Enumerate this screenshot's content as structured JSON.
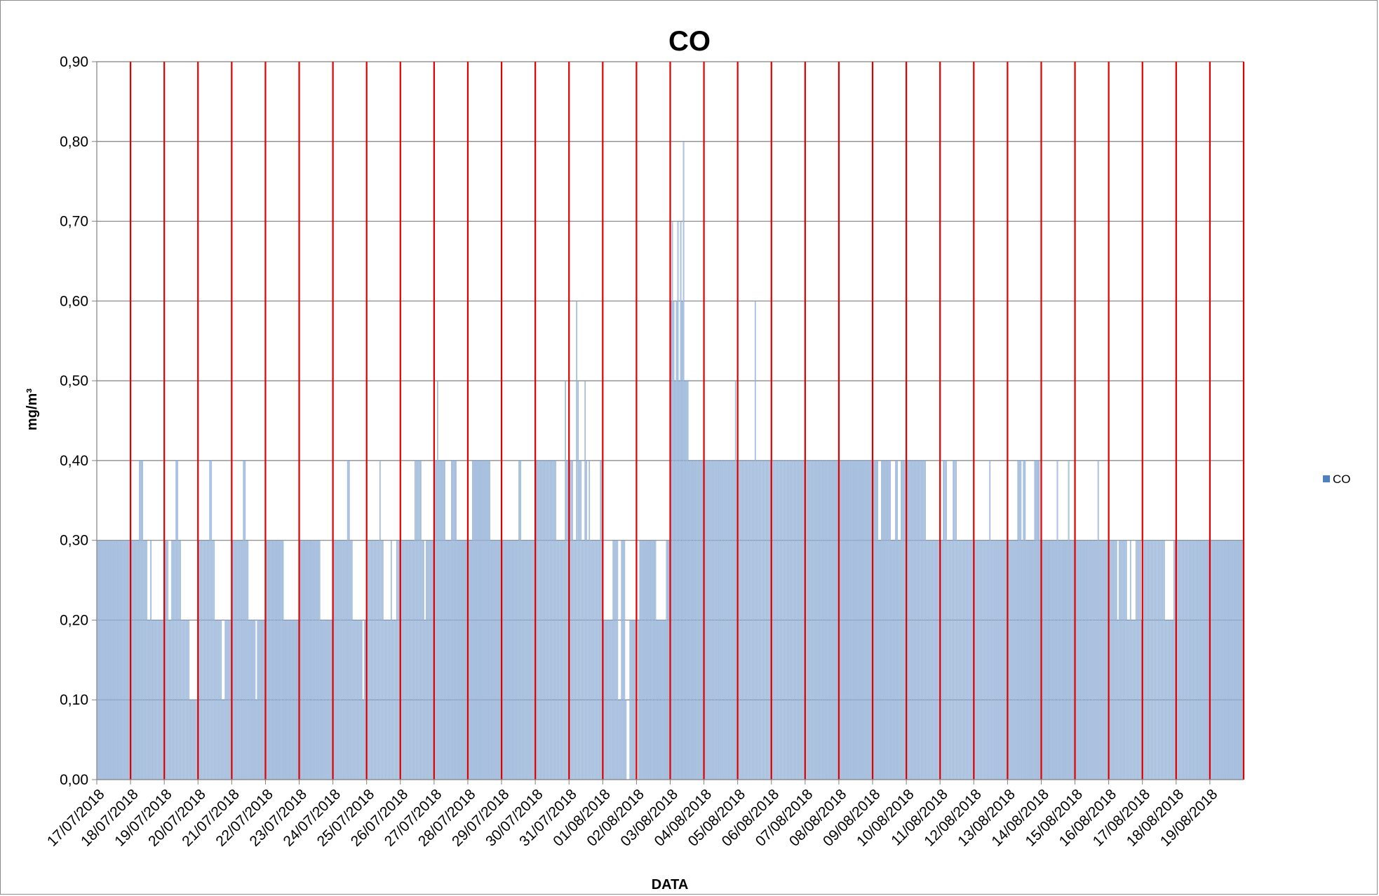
{
  "chart_data": {
    "type": "bar",
    "title": "CO",
    "xlabel": "DATA",
    "ylabel": "mg/m³",
    "ylim": [
      0,
      0.9
    ],
    "y_ticks": [
      "0,00",
      "0,10",
      "0,20",
      "0,30",
      "0,40",
      "0,50",
      "0,60",
      "0,70",
      "0,80",
      "0,90"
    ],
    "grid": true,
    "legend": {
      "position": "right",
      "entries": [
        "CO"
      ]
    },
    "colors": {
      "bar": "#4f81bd",
      "bar_fill": "#bccde6",
      "day_separator": "#e00000",
      "grid": "#808080"
    },
    "samples_per_day": 24,
    "categories": [
      "17/07/2018",
      "18/07/2018",
      "19/07/2018",
      "20/07/2018",
      "21/07/2018",
      "22/07/2018",
      "23/07/2018",
      "24/07/2018",
      "25/07/2018",
      "26/07/2018",
      "27/07/2018",
      "28/07/2018",
      "29/07/2018",
      "30/07/2018",
      "31/07/2018",
      "01/08/2018",
      "02/08/2018",
      "03/08/2018",
      "04/08/2018",
      "05/08/2018",
      "06/08/2018",
      "07/08/2018",
      "08/08/2018",
      "09/08/2018",
      "10/08/2018",
      "11/08/2018",
      "12/08/2018",
      "13/08/2018",
      "14/08/2018",
      "15/08/2018",
      "16/08/2018",
      "17/08/2018",
      "18/08/2018",
      "19/08/2018"
    ],
    "series": [
      {
        "name": "CO",
        "daily_values": [
          [
            0.3,
            0.3,
            0.3,
            0.3,
            0.3,
            0.3,
            0.3,
            0.3,
            0.3,
            0.3,
            0.3,
            0.3,
            0.3,
            0.3,
            0.3,
            0.3,
            0.3,
            0.3,
            0.3,
            0.3,
            0.3,
            0.3,
            0.3,
            0.3
          ],
          [
            0.3,
            0.3,
            0.3,
            0.3,
            0.3,
            0.3,
            0.4,
            0.4,
            0.4,
            0.3,
            0.3,
            0.3,
            0.2,
            0.2,
            0.3,
            0.2,
            0.2,
            0.2,
            0.2,
            0.2,
            0.2,
            0.2,
            0.2,
            0.2
          ],
          [
            0.3,
            0.3,
            0.3,
            0.2,
            0.2,
            0.3,
            0.3,
            0.3,
            0.4,
            0.4,
            0.3,
            0.3,
            0.2,
            0.2,
            0.2,
            0.2,
            0.2,
            0.2,
            0.1,
            0.1,
            0.1,
            0.1,
            0.1,
            0.1
          ],
          [
            0.3,
            0.3,
            0.3,
            0.3,
            0.3,
            0.3,
            0.3,
            0.3,
            0.4,
            0.4,
            0.3,
            0.3,
            0.2,
            0.2,
            0.2,
            0.2,
            0.2,
            0.1,
            0.1,
            0.2,
            0.2,
            0.2,
            0.2,
            0.2
          ],
          [
            0.3,
            0.3,
            0.3,
            0.3,
            0.3,
            0.3,
            0.3,
            0.3,
            0.4,
            0.4,
            0.3,
            0.3,
            0.2,
            0.2,
            0.2,
            0.2,
            0.2,
            0.1,
            0.2,
            0.2,
            0.2,
            0.2,
            0.2,
            0.2
          ],
          [
            0.3,
            0.3,
            0.3,
            0.3,
            0.3,
            0.3,
            0.3,
            0.3,
            0.3,
            0.3,
            0.3,
            0.3,
            0.3,
            0.2,
            0.2,
            0.2,
            0.2,
            0.2,
            0.2,
            0.2,
            0.2,
            0.2,
            0.2,
            0.2
          ],
          [
            0.3,
            0.3,
            0.3,
            0.3,
            0.3,
            0.3,
            0.3,
            0.3,
            0.3,
            0.3,
            0.3,
            0.3,
            0.3,
            0.3,
            0.3,
            0.2,
            0.2,
            0.2,
            0.2,
            0.2,
            0.2,
            0.2,
            0.2,
            0.2
          ],
          [
            0.3,
            0.3,
            0.3,
            0.3,
            0.3,
            0.3,
            0.3,
            0.3,
            0.3,
            0.3,
            0.4,
            0.4,
            0.3,
            0.3,
            0.2,
            0.2,
            0.2,
            0.2,
            0.2,
            0.2,
            0.2,
            0.1,
            0.2,
            0.2
          ],
          [
            0.3,
            0.3,
            0.3,
            0.3,
            0.3,
            0.3,
            0.3,
            0.3,
            0.3,
            0.4,
            0.3,
            0.3,
            0.2,
            0.2,
            0.2,
            0.2,
            0.2,
            0.3,
            0.2,
            0.2,
            0.2,
            0.3,
            0.3,
            0.3
          ],
          [
            0.3,
            0.3,
            0.3,
            0.3,
            0.3,
            0.3,
            0.3,
            0.3,
            0.3,
            0.3,
            0.4,
            0.4,
            0.4,
            0.4,
            0.4,
            0.3,
            0.3,
            0.2,
            0.3,
            0.3,
            0.3,
            0.3,
            0.3,
            0.3
          ],
          [
            0.4,
            0.4,
            0.5,
            0.4,
            0.4,
            0.4,
            0.4,
            0.4,
            0.3,
            0.3,
            0.3,
            0.3,
            0.4,
            0.4,
            0.4,
            0.4,
            0.3,
            0.3,
            0.3,
            0.3,
            0.3,
            0.3,
            0.3,
            0.3
          ],
          [
            0.3,
            0.3,
            0.3,
            0.4,
            0.4,
            0.4,
            0.4,
            0.4,
            0.4,
            0.4,
            0.4,
            0.4,
            0.4,
            0.4,
            0.4,
            0.4,
            0.3,
            0.3,
            0.3,
            0.3,
            0.3,
            0.3,
            0.3,
            0.3
          ],
          [
            0.3,
            0.3,
            0.3,
            0.3,
            0.3,
            0.3,
            0.3,
            0.3,
            0.3,
            0.3,
            0.3,
            0.3,
            0.4,
            0.4,
            0.3,
            0.3,
            0.3,
            0.3,
            0.3,
            0.3,
            0.3,
            0.3,
            0.3,
            0.3
          ],
          [
            0.4,
            0.4,
            0.4,
            0.4,
            0.4,
            0.4,
            0.4,
            0.4,
            0.4,
            0.4,
            0.4,
            0.4,
            0.4,
            0.4,
            0.4,
            0.3,
            0.3,
            0.3,
            0.3,
            0.3,
            0.3,
            0.5,
            0.4,
            0.4
          ],
          [
            0.4,
            0.4,
            0.4,
            0.3,
            0.3,
            0.6,
            0.5,
            0.4,
            0.4,
            0.3,
            0.3,
            0.5,
            0.4,
            0.3,
            0.4,
            0.3,
            0.3,
            0.3,
            0.3,
            0.3,
            0.3,
            0.3,
            0.4,
            0.4
          ],
          [
            0.2,
            0.2,
            0.2,
            0.2,
            0.2,
            0.2,
            0.2,
            0.3,
            0.3,
            0.3,
            0.3,
            0.1,
            0.1,
            0.3,
            0.3,
            0.3,
            0.1,
            0.0,
            0.0,
            0.2,
            0.2,
            0.2,
            0.2,
            0.2
          ],
          [
            0.0,
            0.2,
            0.3,
            0.3,
            0.3,
            0.3,
            0.3,
            0.3,
            0.3,
            0.3,
            0.3,
            0.3,
            0.3,
            0.3,
            0.2,
            0.2,
            0.2,
            0.2,
            0.2,
            0.2,
            0.2,
            0.3,
            0.3,
            0.3
          ],
          [
            0.6,
            0.7,
            0.6,
            0.5,
            0.6,
            0.7,
            0.5,
            0.7,
            0.6,
            0.8,
            0.5,
            0.5,
            0.5,
            0.4,
            0.4,
            0.4,
            0.4,
            0.4,
            0.4,
            0.4,
            0.4,
            0.4,
            0.4,
            0.4
          ],
          [
            0.4,
            0.4,
            0.4,
            0.4,
            0.4,
            0.4,
            0.4,
            0.4,
            0.4,
            0.4,
            0.4,
            0.4,
            0.4,
            0.4,
            0.4,
            0.4,
            0.4,
            0.4,
            0.4,
            0.4,
            0.4,
            0.4,
            0.5,
            0.4
          ],
          [
            0.4,
            0.4,
            0.4,
            0.4,
            0.4,
            0.4,
            0.4,
            0.4,
            0.4,
            0.4,
            0.4,
            0.4,
            0.6,
            0.4,
            0.4,
            0.4,
            0.4,
            0.4,
            0.4,
            0.4,
            0.4,
            0.4,
            0.4,
            0.4
          ],
          [
            0.4,
            0.4,
            0.4,
            0.4,
            0.4,
            0.4,
            0.4,
            0.4,
            0.4,
            0.4,
            0.4,
            0.4,
            0.4,
            0.4,
            0.4,
            0.4,
            0.4,
            0.4,
            0.4,
            0.4,
            0.4,
            0.4,
            0.4,
            0.4
          ],
          [
            0.4,
            0.4,
            0.4,
            0.4,
            0.4,
            0.4,
            0.4,
            0.4,
            0.4,
            0.4,
            0.4,
            0.4,
            0.4,
            0.4,
            0.4,
            0.4,
            0.4,
            0.4,
            0.4,
            0.4,
            0.4,
            0.4,
            0.4,
            0.4
          ],
          [
            0.4,
            0.4,
            0.4,
            0.4,
            0.4,
            0.4,
            0.4,
            0.4,
            0.4,
            0.4,
            0.4,
            0.4,
            0.4,
            0.4,
            0.4,
            0.4,
            0.4,
            0.4,
            0.4,
            0.4,
            0.4,
            0.4,
            0.4,
            0.4
          ],
          [
            0.4,
            0.4,
            0.4,
            0.4,
            0.3,
            0.3,
            0.4,
            0.4,
            0.4,
            0.4,
            0.4,
            0.4,
            0.4,
            0.3,
            0.3,
            0.3,
            0.4,
            0.4,
            0.3,
            0.3,
            0.4,
            0.4,
            0.4,
            0.4
          ],
          [
            0.4,
            0.4,
            0.4,
            0.4,
            0.4,
            0.4,
            0.4,
            0.4,
            0.4,
            0.4,
            0.4,
            0.4,
            0.4,
            0.4,
            0.3,
            0.3,
            0.3,
            0.3,
            0.3,
            0.3,
            0.3,
            0.3,
            0.3,
            0.3
          ],
          [
            0.3,
            0.3,
            0.4,
            0.4,
            0.4,
            0.3,
            0.3,
            0.3,
            0.3,
            0.4,
            0.4,
            0.4,
            0.3,
            0.3,
            0.3,
            0.3,
            0.3,
            0.3,
            0.3,
            0.3,
            0.3,
            0.3,
            0.3,
            0.3
          ],
          [
            0.3,
            0.3,
            0.3,
            0.3,
            0.3,
            0.3,
            0.3,
            0.3,
            0.3,
            0.3,
            0.3,
            0.4,
            0.3,
            0.3,
            0.3,
            0.3,
            0.3,
            0.3,
            0.3,
            0.3,
            0.3,
            0.3,
            0.3,
            0.3
          ],
          [
            0.3,
            0.3,
            0.3,
            0.3,
            0.3,
            0.3,
            0.3,
            0.4,
            0.4,
            0.4,
            0.3,
            0.4,
            0.4,
            0.3,
            0.3,
            0.3,
            0.3,
            0.3,
            0.3,
            0.4,
            0.4,
            0.4,
            0.4,
            0.3
          ],
          [
            0.3,
            0.3,
            0.3,
            0.3,
            0.3,
            0.3,
            0.3,
            0.3,
            0.3,
            0.3,
            0.3,
            0.4,
            0.3,
            0.3,
            0.3,
            0.3,
            0.3,
            0.3,
            0.3,
            0.4,
            0.3,
            0.3,
            0.3,
            0.3
          ],
          [
            0.3,
            0.3,
            0.3,
            0.3,
            0.3,
            0.3,
            0.3,
            0.3,
            0.3,
            0.3,
            0.3,
            0.3,
            0.3,
            0.3,
            0.3,
            0.3,
            0.4,
            0.3,
            0.3,
            0.3,
            0.3,
            0.3,
            0.3,
            0.3
          ],
          [
            0.3,
            0.3,
            0.3,
            0.3,
            0.3,
            0.3,
            0.2,
            0.3,
            0.3,
            0.3,
            0.3,
            0.3,
            0.3,
            0.2,
            0.2,
            0.3,
            0.2,
            0.2,
            0.2,
            0.3,
            0.3,
            0.3,
            0.3,
            0.2
          ],
          [
            0.3,
            0.3,
            0.3,
            0.3,
            0.3,
            0.3,
            0.3,
            0.3,
            0.3,
            0.3,
            0.3,
            0.3,
            0.3,
            0.3,
            0.3,
            0.3,
            0.2,
            0.2,
            0.2,
            0.2,
            0.2,
            0.2,
            0.3,
            0.3
          ],
          [
            0.3,
            0.3,
            0.3,
            0.3,
            0.3,
            0.3,
            0.3,
            0.3,
            0.3,
            0.3,
            0.3,
            0.3,
            0.3,
            0.3,
            0.3,
            0.3,
            0.3,
            0.3,
            0.3,
            0.3,
            0.3,
            0.3,
            0.3,
            0.3
          ],
          [
            0.3,
            0.3,
            0.3,
            0.3,
            0.3,
            0.3,
            0.3,
            0.3,
            0.3,
            0.3,
            0.3,
            0.3,
            0.3,
            0.3,
            0.3,
            0.3,
            0.3,
            0.3,
            0.3,
            0.3,
            0.3,
            0.3,
            0.3,
            0.3
          ]
        ]
      }
    ]
  }
}
